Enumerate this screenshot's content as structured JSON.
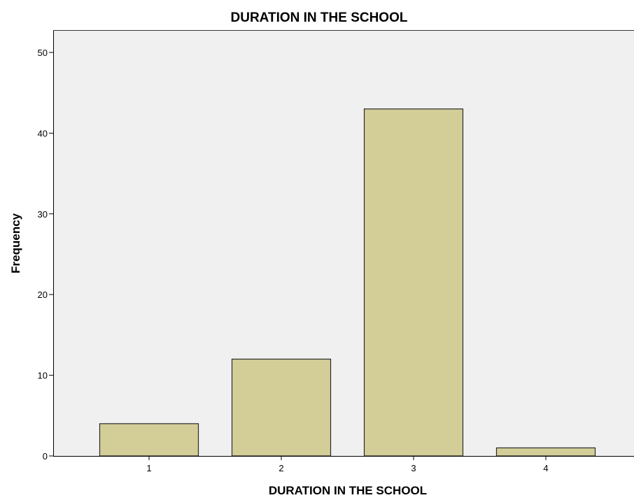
{
  "chart_data": {
    "type": "bar",
    "title": "DURATION IN THE SCHOOL",
    "xlabel": "DURATION IN THE SCHOOL",
    "ylabel": "Frequency",
    "categories": [
      "1",
      "2",
      "3",
      "4"
    ],
    "values": [
      4,
      12,
      43,
      1
    ],
    "ylim": [
      0,
      50
    ],
    "yticks": [
      0,
      10,
      20,
      30,
      40,
      50
    ],
    "grid": false,
    "legend": "none",
    "colors": {
      "bar_fill": "#d3ce98",
      "bar_stroke": "#2b2b2b",
      "plot_background": "#f0f0f0",
      "axis": "#000000"
    }
  }
}
